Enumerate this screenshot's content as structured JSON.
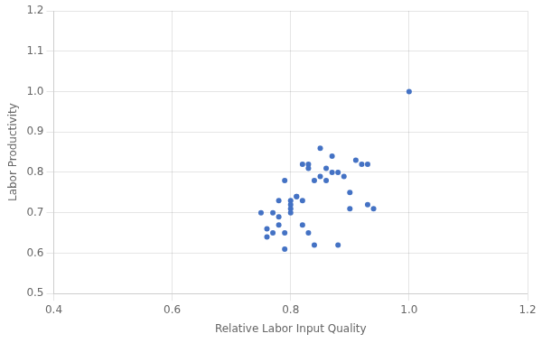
{
  "chart_data": {
    "type": "scatter",
    "xlabel": "Relative Labor Input Quality",
    "ylabel": "Labor Productivity",
    "x": [
      1.0,
      0.77,
      0.78,
      0.79,
      0.78,
      0.79,
      0.8,
      0.81,
      0.8,
      0.82,
      0.83,
      0.85,
      0.87,
      0.88,
      0.89,
      0.9,
      0.91,
      0.92,
      0.93,
      0.94,
      0.75,
      0.76,
      0.77,
      0.8,
      0.81,
      0.82,
      0.84,
      0.85,
      0.86,
      0.76,
      0.79,
      0.82,
      0.83,
      0.84,
      0.88,
      0.9,
      0.78,
      0.8,
      0.83,
      0.86,
      0.87,
      0.93
    ],
    "values": [
      1.0,
      0.7,
      0.69,
      0.78,
      0.67,
      0.65,
      0.73,
      0.74,
      0.72,
      0.82,
      0.82,
      0.86,
      0.8,
      0.8,
      0.79,
      0.75,
      0.83,
      0.82,
      0.72,
      0.71,
      0.7,
      0.66,
      0.65,
      0.71,
      0.74,
      0.73,
      0.78,
      0.79,
      0.78,
      0.64,
      0.61,
      0.67,
      0.65,
      0.62,
      0.62,
      0.71,
      0.73,
      0.7,
      0.81,
      0.81,
      0.84,
      0.82
    ],
    "color": "#4472C4",
    "xlim": [
      0.4,
      1.2
    ],
    "ylim": [
      0.5,
      1.2
    ],
    "xticks": [
      0.4,
      0.6,
      0.8,
      {
        "value": 1.0,
        "label": "1.0"
      },
      1.2
    ],
    "yticks": [
      0.5,
      0.6,
      0.7,
      0.8,
      0.9,
      {
        "value": 1.0,
        "label": "1.0"
      },
      1.1,
      1.2
    ],
    "grid": true
  }
}
